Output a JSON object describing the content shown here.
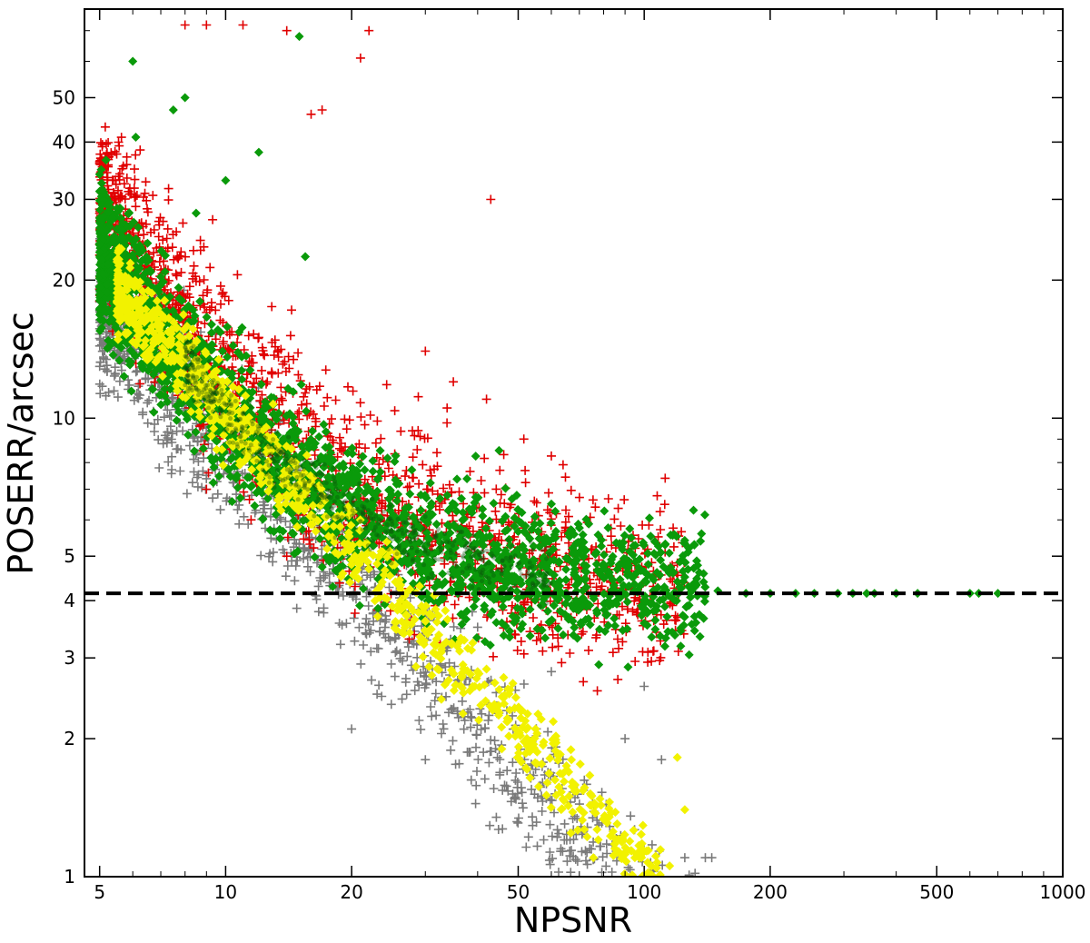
{
  "chart_data": {
    "type": "scatter",
    "title": "",
    "xlabel": "NPSNR",
    "ylabel": "POSERR/arcsec",
    "xscale": "log",
    "yscale": "log",
    "xlim": [
      4.6,
      1000
    ],
    "ylim": [
      1,
      78
    ],
    "grid": false,
    "legend": "none",
    "x_ticks": [
      {
        "value": 5,
        "label": "5"
      },
      {
        "value": 10,
        "label": "10"
      },
      {
        "value": 20,
        "label": "20"
      },
      {
        "value": 50,
        "label": "50"
      },
      {
        "value": 100,
        "label": "100"
      },
      {
        "value": 200,
        "label": "200"
      },
      {
        "value": 500,
        "label": "500"
      },
      {
        "value": 1000,
        "label": "1000"
      }
    ],
    "y_ticks": [
      {
        "value": 1,
        "label": "1"
      },
      {
        "value": 2,
        "label": "2"
      },
      {
        "value": 3,
        "label": "3"
      },
      {
        "value": 4,
        "label": "4"
      },
      {
        "value": 5,
        "label": "5"
      },
      {
        "value": 10,
        "label": "10"
      },
      {
        "value": 20,
        "label": "20"
      },
      {
        "value": 30,
        "label": "30"
      },
      {
        "value": 40,
        "label": "40"
      },
      {
        "value": 50,
        "label": "50"
      }
    ],
    "reference_line": {
      "axis": "y",
      "value": 4.15,
      "style": "dashed",
      "color": "#000000"
    },
    "series": [
      {
        "marker": "plus",
        "color": "#7a7a7a",
        "band": {
          "x_range": [
            5,
            150
          ],
          "model": "y = 88 / x",
          "scatter_dex": 0.08
        },
        "points": [
          [
            5.5,
            16
          ],
          [
            6.5,
            10.8
          ],
          [
            9,
            7.5
          ],
          [
            13,
            5.1
          ],
          [
            20,
            2.1
          ],
          [
            23,
            2.5
          ],
          [
            30,
            1.8
          ],
          [
            40,
            3.5
          ],
          [
            60,
            2.8
          ],
          [
            90,
            2.0
          ],
          [
            100,
            2.6
          ],
          [
            110,
            1.8
          ],
          [
            125,
            1.1
          ],
          [
            140,
            1.1
          ],
          [
            145,
            1.1
          ]
        ]
      },
      {
        "marker": "plus",
        "color": "#e00000",
        "band": {
          "x_range": [
            5,
            125
          ],
          "model": "y = 4.15 + 300 / x^1.55",
          "scatter_dex": 0.1
        },
        "points": [
          [
            8,
            72
          ],
          [
            9,
            72
          ],
          [
            11,
            72
          ],
          [
            14,
            70
          ],
          [
            22,
            70
          ],
          [
            21,
            61
          ],
          [
            17,
            47
          ],
          [
            16,
            46
          ],
          [
            43,
            30
          ],
          [
            9,
            17
          ],
          [
            10,
            11
          ],
          [
            9,
            7
          ],
          [
            11.5,
            6
          ],
          [
            14,
            5
          ],
          [
            12,
            15
          ],
          [
            30,
            14
          ],
          [
            42,
            11
          ],
          [
            65,
            6.3
          ],
          [
            66,
            6.1
          ],
          [
            35,
            12
          ]
        ]
      },
      {
        "marker": "diamond",
        "color": "#0a9a0a",
        "band": {
          "x_range": [
            5,
            140
          ],
          "model": "y = 4.15 + 240 / x^1.58",
          "scatter_dex": 0.075
        },
        "points": [
          [
            15,
            68
          ],
          [
            6,
            60
          ],
          [
            8,
            50
          ],
          [
            7.5,
            47
          ],
          [
            6.1,
            41
          ],
          [
            8.5,
            28
          ],
          [
            12,
            38
          ],
          [
            10,
            33
          ],
          [
            15.5,
            22.5
          ],
          [
            5,
            34
          ],
          [
            5,
            24
          ],
          [
            5,
            23
          ],
          [
            5.5,
            14.5
          ],
          [
            45,
            8.5
          ],
          [
            60,
            6.5
          ],
          [
            120,
            4.4
          ],
          [
            130,
            4.2
          ],
          [
            150,
            4.2
          ],
          [
            175,
            4.15
          ],
          [
            200,
            4.15
          ],
          [
            230,
            4.15
          ],
          [
            255,
            4.15
          ],
          [
            290,
            4.15
          ],
          [
            315,
            4.15
          ],
          [
            340,
            4.15
          ],
          [
            355,
            4.15
          ],
          [
            400,
            4.15
          ],
          [
            450,
            4.15
          ],
          [
            600,
            4.15
          ],
          [
            630,
            4.15
          ],
          [
            700,
            4.15
          ]
        ]
      },
      {
        "marker": "diamond",
        "color": "#f2f200",
        "band": {
          "x_range": [
            5.5,
            115
          ],
          "model": "y = 105 / x",
          "scatter_dex": 0.045
        },
        "points": [
          [
            5.5,
            18
          ],
          [
            6,
            17.5
          ],
          [
            8,
            14
          ],
          [
            11,
            9.5
          ],
          [
            14,
            6.8
          ],
          [
            18,
            5.5
          ],
          [
            28,
            3.8
          ],
          [
            40,
            2.8
          ],
          [
            55,
            2.1
          ],
          [
            75,
            1.5
          ],
          [
            95,
            1.1
          ],
          [
            105,
            1.0
          ],
          [
            120,
            1.82
          ],
          [
            125,
            1.4
          ]
        ]
      }
    ]
  }
}
